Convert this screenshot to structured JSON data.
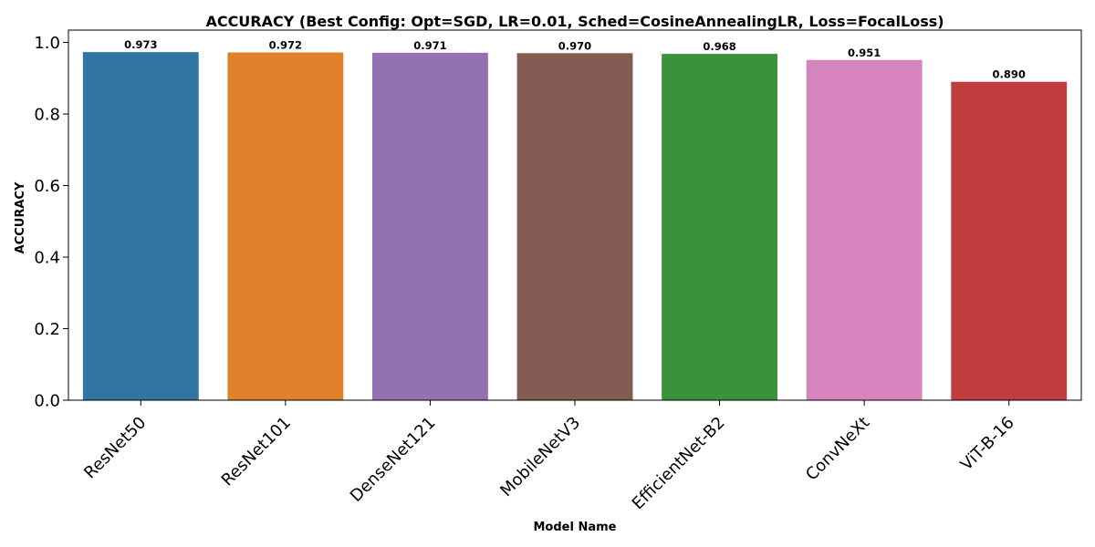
{
  "chart_data": {
    "type": "bar",
    "title": "ACCURACY (Best Config: Opt=SGD, LR=0.01, Sched=CosineAnnealingLR, Loss=FocalLoss)",
    "xlabel": "Model Name",
    "ylabel": "ACCURACY",
    "ylim": [
      0,
      1.0
    ],
    "yticks": [
      0.0,
      0.2,
      0.4,
      0.6,
      0.8,
      1.0
    ],
    "ytick_labels": [
      "0.0",
      "0.2",
      "0.4",
      "0.6",
      "0.8",
      "1.0"
    ],
    "categories": [
      "ResNet50",
      "ResNet101",
      "DenseNet121",
      "MobileNetV3",
      "EfficientNet-B2",
      "ConvNeXt",
      "ViT-B-16"
    ],
    "values": [
      0.973,
      0.972,
      0.971,
      0.97,
      0.968,
      0.951,
      0.89
    ],
    "value_labels": [
      "0.973",
      "0.972",
      "0.971",
      "0.970",
      "0.968",
      "0.951",
      "0.890"
    ],
    "colors": [
      "#3274a1",
      "#e1812c",
      "#9372b2",
      "#845b53",
      "#3a923a",
      "#d684bd",
      "#c03d3e"
    ],
    "grid": false,
    "legend": "none"
  }
}
